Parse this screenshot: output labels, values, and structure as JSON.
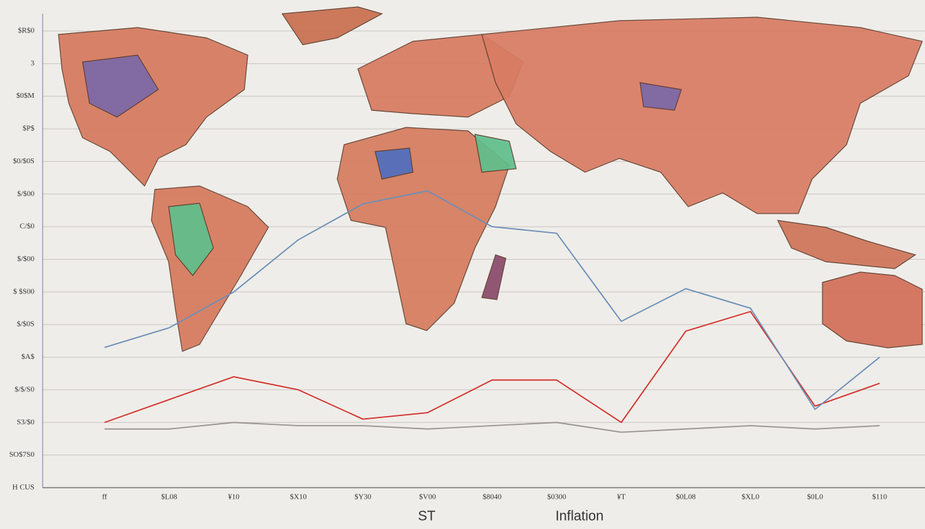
{
  "chart_data": {
    "type": "line",
    "xlabel": "Inflation",
    "annotations": [
      "ST"
    ],
    "categories": [
      "ff",
      "$L08",
      "¥10",
      "$X10",
      "$Y30",
      "$V00",
      "$8040",
      "$0300",
      "¥T",
      "$0L08",
      "$XL0",
      "$0L0",
      "$110"
    ],
    "series": [
      {
        "color": "#d2322d",
        "values": [
          2.0,
          2.7,
          3.4,
          3.0,
          2.1,
          2.3,
          3.3,
          3.3,
          2.0,
          4.8,
          5.4,
          2.5,
          3.2
        ]
      },
      {
        "color": "#9a9590",
        "values": [
          1.8,
          1.8,
          2.0,
          1.9,
          1.9,
          1.8,
          1.9,
          2.0,
          1.7,
          1.8,
          1.9,
          1.8,
          1.9
        ]
      },
      {
        "color": "#6a8fb8",
        "values": [
          4.3,
          4.9,
          6.0,
          7.6,
          8.7,
          9.1,
          8.0,
          7.8,
          5.1,
          6.1,
          5.5,
          2.4,
          4.0
        ]
      }
    ],
    "ylim": [
      0,
      14
    ],
    "yticks": [
      {
        "value": 0,
        "label": "H CUS"
      },
      {
        "value": 1,
        "label": "SO$7S0"
      },
      {
        "value": 2,
        "label": "S3/$0"
      },
      {
        "value": 3,
        "label": "$/$/S0"
      },
      {
        "value": 4,
        "label": "$A$"
      },
      {
        "value": 5,
        "label": "$/$0S"
      },
      {
        "value": 6,
        "label": "$ $S00"
      },
      {
        "value": 7,
        "label": "$/$00"
      },
      {
        "value": 8,
        "label": "C/$0"
      },
      {
        "value": 9,
        "label": "$/$00"
      },
      {
        "value": 10,
        "label": "$0/$0S"
      },
      {
        "value": 11,
        "label": "$P$"
      },
      {
        "value": 12,
        "label": "$0$M"
      },
      {
        "value": 13,
        "label": "3"
      },
      {
        "value": 14,
        "label": "$R$0"
      }
    ],
    "grid": true
  }
}
